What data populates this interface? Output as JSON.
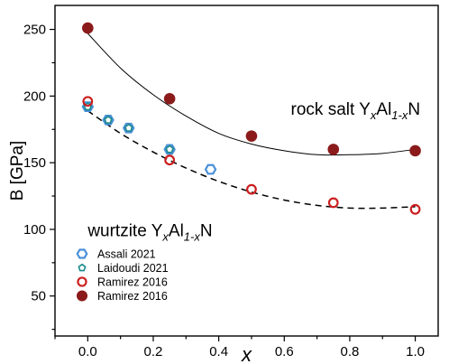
{
  "chart_data": {
    "type": "scatter",
    "xlabel": "x",
    "ylabel": "B [GPa]",
    "xlim": [
      -0.1,
      1.07
    ],
    "ylim": [
      20,
      268
    ],
    "x_ticks": [
      0.0,
      0.2,
      0.4,
      0.6,
      0.8,
      1.0
    ],
    "x_tick_labels": [
      "0.0",
      "0.2",
      "0.4",
      "0.6",
      "0.8",
      "1.0"
    ],
    "y_ticks": [
      50,
      100,
      150,
      200,
      250
    ],
    "y_tick_labels": [
      "50",
      "100",
      "150",
      "200",
      "250"
    ],
    "legend_position": "bottom-left",
    "series": [
      {
        "name": "Assali 2021",
        "marker": "hexagon-open",
        "color": "#4a90d9",
        "x": [
          0.0,
          0.0625,
          0.125,
          0.25,
          0.375
        ],
        "y": [
          192,
          182,
          176,
          160,
          145
        ]
      },
      {
        "name": "Laidoudi 2021",
        "marker": "pentagon-open",
        "color": "#1a8a8a",
        "x": [
          0.0,
          0.0625,
          0.125,
          0.25
        ],
        "y": [
          192,
          182,
          176,
          160
        ]
      },
      {
        "name": "Ramirez 2016",
        "marker": "circle-open",
        "color": "#cc1f1f",
        "x": [
          0.0,
          0.25,
          0.5,
          0.75,
          1.0
        ],
        "y": [
          196,
          152,
          130,
          120,
          115
        ]
      },
      {
        "name": "Ramirez 2016",
        "marker": "circle-filled",
        "color": "#8b1a1a",
        "x": [
          0.0,
          0.25,
          0.5,
          0.75,
          1.0
        ],
        "y": [
          251,
          198,
          170,
          160,
          159
        ]
      }
    ],
    "fit_curves": [
      {
        "style": "solid",
        "x": [
          0.0,
          0.1,
          0.2,
          0.3,
          0.4,
          0.5,
          0.6,
          0.7,
          0.8,
          0.9,
          1.0
        ],
        "y": [
          247,
          221,
          201,
          185,
          172,
          164,
          159,
          156,
          156,
          157,
          160
        ]
      },
      {
        "style": "dashed",
        "x": [
          0.0,
          0.1,
          0.2,
          0.3,
          0.4,
          0.5,
          0.6,
          0.7,
          0.8,
          0.9,
          1.0
        ],
        "y": [
          189,
          172,
          158,
          146,
          136,
          128,
          122,
          118,
          116,
          116,
          117
        ]
      }
    ],
    "annotations": [
      {
        "prefix": "rock salt Y",
        "sub1": "x",
        "mid": "Al",
        "sub2": "1-x",
        "suffix": "N",
        "at": [
          0.62,
          186
        ]
      },
      {
        "prefix": "wurtzite Y",
        "sub1": "x",
        "mid": "Al",
        "sub2": "1-x",
        "suffix": "N",
        "at": [
          0.0,
          95
        ]
      }
    ]
  }
}
